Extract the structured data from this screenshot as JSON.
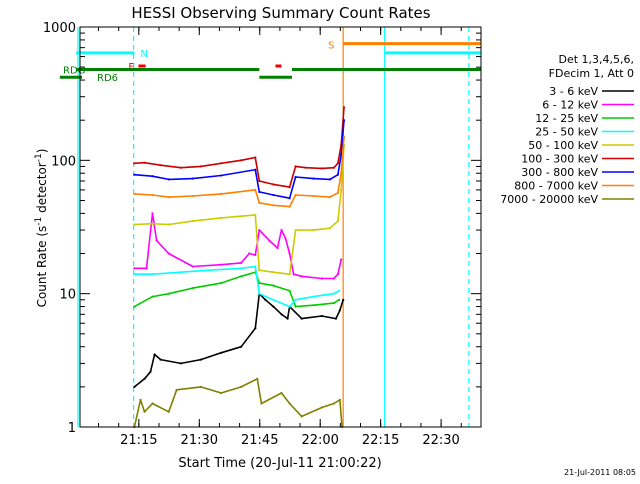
{
  "chart_data": {
    "type": "line",
    "title": "HESSI Observing Summary Count Rates",
    "xlabel": "Start Time (20-Jul-11 21:00:22)",
    "ylabel_main": "Count Rate (s",
    "ylabel_sup1": "-1",
    "ylabel_mid": " detector",
    "ylabel_sup2": "-1",
    "ylabel_end": ")",
    "y_scale": "log",
    "ylim": [
      1,
      1000
    ],
    "xlim_minutes": [
      0,
      99.5
    ],
    "x_ticks": [
      {
        "min": 14.6,
        "label": "21:15"
      },
      {
        "min": 29.6,
        "label": "21:30"
      },
      {
        "min": 44.6,
        "label": "21:45"
      },
      {
        "min": 59.6,
        "label": "22:00"
      },
      {
        "min": 74.6,
        "label": "22:15"
      },
      {
        "min": 89.6,
        "label": "22:30"
      }
    ],
    "y_ticks": [
      {
        "v": 1,
        "label": "1"
      },
      {
        "v": 10,
        "label": "10"
      },
      {
        "v": 100,
        "label": "100"
      },
      {
        "v": 1000,
        "label": "1000"
      }
    ],
    "legend_header": [
      "Det 1,3,4,5,6,",
      "FDecim 1, Att 0"
    ],
    "legend_placement": "right",
    "timestamp": "21-Jul-2011 08:05",
    "series": [
      {
        "name": "3 - 6 keV",
        "color": "#000000",
        "points": [
          [
            13.5,
            2.0
          ],
          [
            16.0,
            2.3
          ],
          [
            17.5,
            2.6
          ],
          [
            18.5,
            3.5
          ],
          [
            20,
            3.2
          ],
          [
            25,
            3.0
          ],
          [
            30,
            3.2
          ],
          [
            35,
            3.6
          ],
          [
            40,
            4.0
          ],
          [
            43.5,
            5.5
          ],
          [
            44.5,
            10.0
          ],
          [
            46,
            9.0
          ],
          [
            48,
            8.0
          ],
          [
            50,
            7.0
          ],
          [
            51.5,
            6.5
          ],
          [
            52,
            8.0
          ],
          [
            55,
            6.5
          ],
          [
            60,
            6.8
          ],
          [
            63.5,
            6.5
          ],
          [
            64.5,
            7.5
          ],
          [
            65.3,
            9.0
          ]
        ]
      },
      {
        "name": "6 - 12 keV",
        "color": "#ff00ff",
        "points": [
          [
            13.5,
            15.5
          ],
          [
            16.5,
            15.5
          ],
          [
            18,
            40.0
          ],
          [
            19,
            25.0
          ],
          [
            22,
            20.0
          ],
          [
            28,
            16.0
          ],
          [
            35,
            16.5
          ],
          [
            40,
            17.0
          ],
          [
            42,
            20.0
          ],
          [
            43.5,
            19.5
          ],
          [
            44.5,
            30.0
          ],
          [
            47,
            25.0
          ],
          [
            49,
            22.0
          ],
          [
            50,
            30.0
          ],
          [
            51,
            26.0
          ],
          [
            52,
            20.0
          ],
          [
            53,
            14.0
          ],
          [
            55,
            13.5
          ],
          [
            60,
            13.0
          ],
          [
            63,
            13.0
          ],
          [
            64,
            14.0
          ],
          [
            64.8,
            18.0
          ]
        ]
      },
      {
        "name": "12 - 25 keV",
        "color": "#00cc00",
        "points": [
          [
            13.5,
            8.0
          ],
          [
            18,
            9.5
          ],
          [
            22,
            10.0
          ],
          [
            28,
            11.0
          ],
          [
            35,
            12.0
          ],
          [
            40,
            13.5
          ],
          [
            43.5,
            14.5
          ],
          [
            44.5,
            12.0
          ],
          [
            48,
            11.5
          ],
          [
            52,
            10.5
          ],
          [
            53.5,
            8.0
          ],
          [
            58,
            8.2
          ],
          [
            63,
            8.5
          ],
          [
            64.3,
            9.0
          ]
        ]
      },
      {
        "name": "25 - 50 keV",
        "color": "#00ffff",
        "points": [
          [
            13.5,
            14.0
          ],
          [
            18,
            14.0
          ],
          [
            25,
            14.5
          ],
          [
            32,
            15.0
          ],
          [
            40,
            15.5
          ],
          [
            43.5,
            16.0
          ],
          [
            44.5,
            10.0
          ],
          [
            48,
            9.0
          ],
          [
            52,
            8.0
          ],
          [
            53.5,
            9.0
          ],
          [
            58,
            9.5
          ],
          [
            63,
            10.0
          ],
          [
            64.3,
            10.5
          ]
        ]
      },
      {
        "name": "50 - 100 keV",
        "color": "#cccc00",
        "points": [
          [
            13.5,
            33.0
          ],
          [
            18,
            33.5
          ],
          [
            22,
            33.0
          ],
          [
            28,
            35.0
          ],
          [
            35,
            37.0
          ],
          [
            43.5,
            39.0
          ],
          [
            44.5,
            15.0
          ],
          [
            48,
            14.5
          ],
          [
            52,
            14.0
          ],
          [
            53.5,
            30.0
          ],
          [
            58,
            30.0
          ],
          [
            62,
            31.0
          ],
          [
            64,
            35.0
          ],
          [
            64.8,
            60.0
          ],
          [
            65.5,
            130.0
          ]
        ]
      },
      {
        "name": "100 - 300 keV",
        "color": "#cc0000",
        "points": [
          [
            13.5,
            95.0
          ],
          [
            16,
            96.0
          ],
          [
            20,
            92.0
          ],
          [
            25,
            88.0
          ],
          [
            30,
            90.0
          ],
          [
            35,
            95.0
          ],
          [
            40,
            100.0
          ],
          [
            43.5,
            105.0
          ],
          [
            44.5,
            70.0
          ],
          [
            48,
            66.0
          ],
          [
            52,
            63.0
          ],
          [
            53.5,
            90.0
          ],
          [
            56,
            88.0
          ],
          [
            60,
            87.0
          ],
          [
            63,
            88.0
          ],
          [
            64,
            95.0
          ],
          [
            64.8,
            130.0
          ],
          [
            65.5,
            250.0
          ]
        ]
      },
      {
        "name": "300 - 800 keV",
        "color": "#0000ff",
        "points": [
          [
            13.5,
            78.0
          ],
          [
            18,
            76.0
          ],
          [
            22,
            72.0
          ],
          [
            28,
            73.0
          ],
          [
            35,
            77.0
          ],
          [
            43.5,
            85.0
          ],
          [
            44.5,
            58.0
          ],
          [
            48,
            55.0
          ],
          [
            52,
            52.0
          ],
          [
            53.5,
            75.0
          ],
          [
            58,
            73.0
          ],
          [
            62,
            72.0
          ],
          [
            64,
            78.0
          ],
          [
            64.8,
            110.0
          ],
          [
            65.5,
            200.0
          ]
        ]
      },
      {
        "name": "800 - 7000 keV",
        "color": "#ff8000",
        "points": [
          [
            13.5,
            56.0
          ],
          [
            18,
            55.0
          ],
          [
            22,
            53.0
          ],
          [
            28,
            54.0
          ],
          [
            35,
            56.0
          ],
          [
            43.5,
            60.0
          ],
          [
            44.5,
            48.0
          ],
          [
            48,
            46.0
          ],
          [
            52,
            45.0
          ],
          [
            53.5,
            55.0
          ],
          [
            58,
            54.0
          ],
          [
            62,
            53.0
          ],
          [
            64,
            57.0
          ],
          [
            64.8,
            80.0
          ],
          [
            65.5,
            150.0
          ]
        ]
      },
      {
        "name": "7000 - 20000 keV",
        "color": "#808000",
        "points": [
          [
            13.5,
            1.0
          ],
          [
            15,
            1.6
          ],
          [
            16,
            1.3
          ],
          [
            18,
            1.5
          ],
          [
            22,
            1.3
          ],
          [
            24,
            1.9
          ],
          [
            30,
            2.0
          ],
          [
            35,
            1.8
          ],
          [
            40,
            2.0
          ],
          [
            44,
            2.3
          ],
          [
            45,
            1.5
          ],
          [
            50,
            1.8
          ],
          [
            52,
            1.5
          ],
          [
            55,
            1.2
          ],
          [
            60,
            1.4
          ],
          [
            63,
            1.5
          ],
          [
            64.5,
            1.6
          ],
          [
            65,
            1.0
          ]
        ]
      }
    ],
    "flags": [
      {
        "label": "N",
        "color": "#00ffff",
        "y_val": 640,
        "segments": [
          [
            -1,
            13.5
          ]
        ]
      },
      {
        "label": "F",
        "color": "#ee0000",
        "y_val": 510,
        "segments": [
          [
            14.5,
            16.3
          ]
        ]
      },
      {
        "label": "",
        "color": "#ee0000",
        "y_val": 510,
        "segments": [
          [
            48.5,
            50.0
          ]
        ]
      },
      {
        "label": "S",
        "color": "#ff8000",
        "y_val": 750,
        "segments": [
          [
            65.3,
            100
          ]
        ]
      },
      {
        "label": "",
        "color": "#00ffff",
        "y_val": 640,
        "segments": [
          [
            75.6,
            100
          ]
        ]
      },
      {
        "label": "RDG",
        "color": "#008000",
        "y_val": 480,
        "segments": [
          [
            -1,
            44.5
          ],
          [
            52.6,
            100
          ]
        ]
      },
      {
        "label": "",
        "color": "#008000",
        "y_val": 420,
        "segments": [
          [
            -5,
            0.5
          ],
          [
            44.5,
            52.6
          ]
        ]
      },
      {
        "label": "RD6",
        "color": "#008000",
        "y_val": 420,
        "segments": []
      }
    ],
    "vlines": [
      {
        "min": -0.5,
        "color": "#00ffff",
        "dashed": false
      },
      {
        "min": 13.3,
        "color": "#00ffff",
        "dashed": true
      },
      {
        "min": 65.3,
        "color": "#ff8000",
        "dashed": false
      },
      {
        "min": 75.6,
        "color": "#00ffff",
        "dashed": false
      },
      {
        "min": 96.5,
        "color": "#00ffff",
        "dashed": true
      }
    ]
  }
}
